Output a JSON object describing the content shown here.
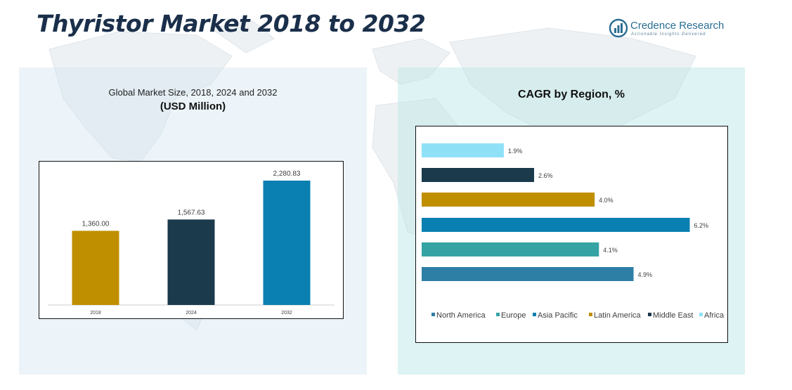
{
  "header": {
    "title": "Thyristor Market 2018 to 2032",
    "logo_name": "Credence Research",
    "logo_tagline": "Actionable Insights Delivered"
  },
  "left_panel": {
    "subtitle": "Global Market Size, 2018, 2024 and 2032",
    "unit": "(USD Million)"
  },
  "right_panel": {
    "title": "CAGR by Region, %"
  },
  "colors": {
    "title": "#1a2f4a",
    "gold": "#bf8f00",
    "navy": "#1b3a4b",
    "blue": "#0a7fb1",
    "teal": "#35a3a3",
    "steel": "#2e7fa6",
    "light": "#8fe1f7"
  },
  "chart_data": [
    {
      "type": "bar",
      "orientation": "vertical",
      "categories": [
        "2018",
        "2024",
        "2032"
      ],
      "values": [
        1360.0,
        1567.63,
        2280.83
      ],
      "data_labels": [
        "1,360.00",
        "1,567.63",
        "2,280.83"
      ],
      "colors": [
        "#bf8f00",
        "#1b3a4b",
        "#0a7fb1"
      ],
      "ylim": [
        0,
        2500
      ],
      "grid": false
    },
    {
      "type": "bar",
      "orientation": "horizontal",
      "categories": [
        "North America",
        "Europe",
        "Asia Pacific",
        "Latin America",
        "Middle East",
        "Africa"
      ],
      "values": [
        4.9,
        4.1,
        6.2,
        4.0,
        2.6,
        1.9
      ],
      "data_labels": [
        "4.9%",
        "4.1%",
        "6.2%",
        "4.0%",
        "2.6%",
        "1.9%"
      ],
      "colors": [
        "#2e7fa6",
        "#35a3a3",
        "#0a7fb1",
        "#bf8f00",
        "#1b3a4b",
        "#8fe1f7"
      ],
      "xlim": [
        0,
        6.5
      ],
      "legend": [
        "North America",
        "Europe",
        "Asia Pacific",
        "Latin America",
        "Middle East",
        "Africa"
      ],
      "legend_position": "bottom",
      "grid": false
    }
  ]
}
